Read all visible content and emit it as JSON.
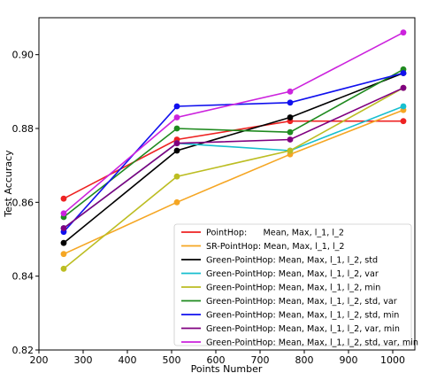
{
  "chart_data": {
    "type": "line",
    "xlabel": "Points Number",
    "ylabel": "Test Accuracy",
    "xlim": [
      200,
      1050
    ],
    "ylim": [
      0.82,
      0.91
    ],
    "xticks": [
      "200",
      "300",
      "400",
      "500",
      "600",
      "700",
      "800",
      "900",
      "1000"
    ],
    "yticks": [
      "0.82",
      "0.84",
      "0.86",
      "0.88",
      "0.90"
    ],
    "grid": false,
    "legend_position": "bottom-right",
    "x": [
      256,
      512,
      768,
      1024
    ],
    "series": [
      {
        "name": "PointHop:      Mean, Max, l_1, l_2",
        "color": "#ee2222",
        "values": [
          0.861,
          0.877,
          0.882,
          0.882
        ]
      },
      {
        "name": "SR-PointHop: Mean, Max, l_1, l_2",
        "color": "#f5a623",
        "values": [
          0.846,
          0.86,
          0.873,
          0.885
        ]
      },
      {
        "name": "Green-PointHop: Mean, Max, l_1, l_2, std",
        "color": "#000000",
        "values": [
          0.849,
          0.874,
          0.883,
          0.895
        ]
      },
      {
        "name": "Green-PointHop: Mean, Max, l_1, l_2, var",
        "color": "#17bfcf",
        "values": [
          0.853,
          0.876,
          0.874,
          0.886
        ]
      },
      {
        "name": "Green-PointHop: Mean, Max, l_1, l_2, min",
        "color": "#bcbd22",
        "values": [
          0.842,
          0.867,
          0.874,
          0.891
        ]
      },
      {
        "name": "Green-PointHop: Mean, Max, l_1, l_2, std, var",
        "color": "#1f8a1f",
        "values": [
          0.856,
          0.88,
          0.879,
          0.896
        ]
      },
      {
        "name": "Green-PointHop: Mean, Max, l_1, l_2, std, min",
        "color": "#1010ee",
        "values": [
          0.852,
          0.886,
          0.887,
          0.895
        ]
      },
      {
        "name": "Green-PointHop: Mean, Max, l_1, l_2, var, min",
        "color": "#800080",
        "values": [
          0.853,
          0.876,
          0.877,
          0.891
        ]
      },
      {
        "name": "Green-PointHop: Mean, Max, l_1, l_2, std, var, min",
        "color": "#cc22dd",
        "values": [
          0.857,
          0.883,
          0.89,
          0.906
        ]
      }
    ]
  }
}
